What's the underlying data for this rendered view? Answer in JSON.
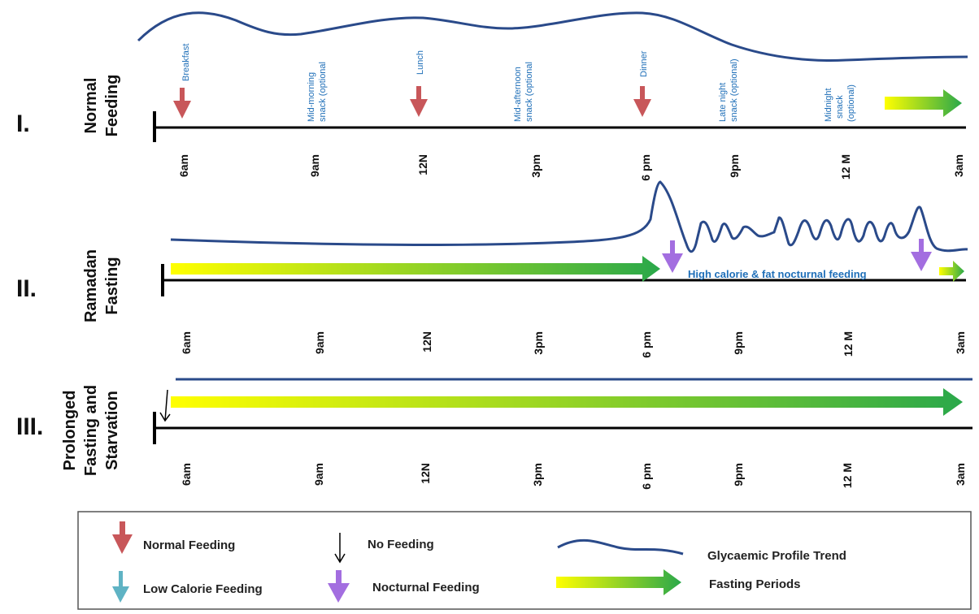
{
  "rows": [
    {
      "numeral": "I.",
      "title": [
        "Normal",
        "Feeding"
      ]
    },
    {
      "numeral": "II.",
      "title": [
        "Ramadan",
        "Fasting"
      ]
    },
    {
      "numeral": "III.",
      "title": [
        "Prolonged",
        "Fasting and",
        "Starvation"
      ]
    }
  ],
  "time_ticks": [
    "6am",
    "9am",
    "12N",
    "3pm",
    "6 pm",
    "9pm",
    "12 M",
    "3am"
  ],
  "meals": [
    [
      "Breakfast"
    ],
    [
      "Mid-morning",
      "snack (optional"
    ],
    [
      "Lunch"
    ],
    [
      "Mid-afternoon",
      "snack (optional"
    ],
    [
      "Dinner"
    ],
    [
      "Late night",
      "snack (optional)"
    ],
    [
      "Midnight",
      "snack",
      "(optional)"
    ]
  ],
  "ramadan_note": "High calorie & fat nocturnal feeding",
  "legend": {
    "normal_feeding": "Normal Feeding",
    "no_feeding": "No Feeding",
    "glycaemic": "Glycaemic Profile Trend",
    "low_calorie": "Low Calorie Feeding",
    "nocturnal": "Nocturnal Feeding",
    "fasting": "Fasting Periods"
  },
  "colors": {
    "normal_arrow": "#c8575a",
    "nocturnal_arrow": "#a36ee0",
    "low_calorie_arrow": "#5fb3c4",
    "glycaemic_line": "#2a4a8a",
    "fasting_start": "#ffff00",
    "fasting_end": "#2aa84a",
    "label_blue": "#1f6fb8"
  }
}
